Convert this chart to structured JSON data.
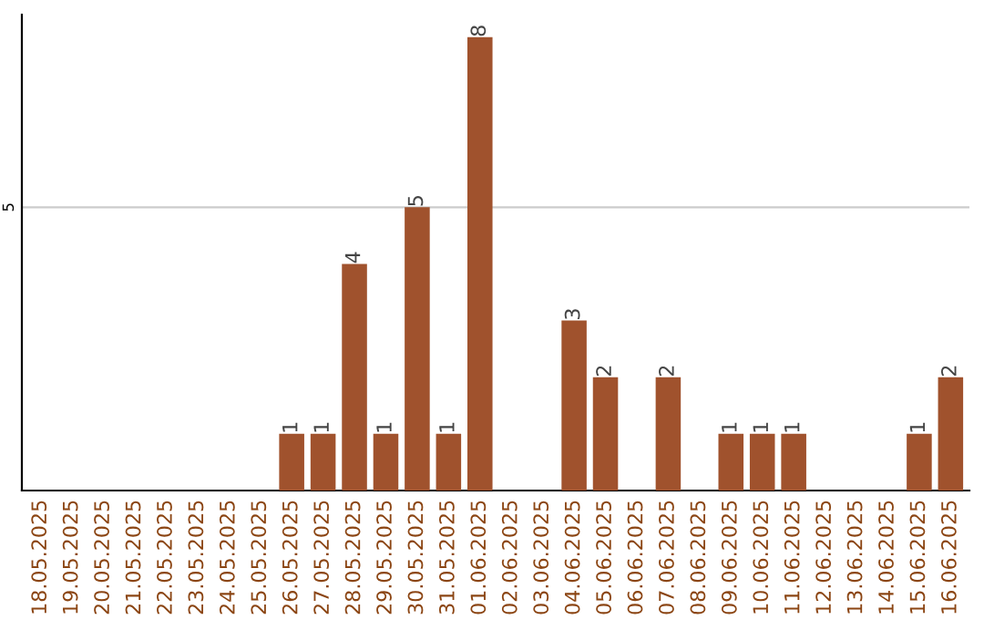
{
  "chart_data": {
    "type": "bar",
    "categories": [
      "18.05.2025",
      "19.05.2025",
      "20.05.2025",
      "21.05.2025",
      "22.05.2025",
      "23.05.2025",
      "24.05.2025",
      "25.05.2025",
      "26.05.2025",
      "27.05.2025",
      "28.05.2025",
      "29.05.2025",
      "30.05.2025",
      "31.05.2025",
      "01.06.2025",
      "02.06.2025",
      "03.06.2025",
      "04.06.2025",
      "05.06.2025",
      "06.06.2025",
      "07.06.2025",
      "08.06.2025",
      "09.06.2025",
      "10.06.2025",
      "11.06.2025",
      "12.06.2025",
      "13.06.2025",
      "14.06.2025",
      "15.06.2025",
      "16.06.2025"
    ],
    "values": [
      0,
      0,
      0,
      0,
      0,
      0,
      0,
      0,
      1,
      1,
      4,
      1,
      5,
      1,
      8,
      0,
      0,
      3,
      2,
      0,
      2,
      0,
      1,
      1,
      1,
      0,
      0,
      0,
      1,
      2
    ],
    "value_labels": [
      null,
      null,
      null,
      null,
      null,
      null,
      null,
      null,
      "1",
      "1",
      "4",
      "1",
      "5",
      "1",
      "8",
      null,
      null,
      "3",
      "2",
      null,
      "2",
      null,
      "1",
      "1",
      "1",
      null,
      null,
      null,
      "1",
      "2"
    ],
    "color": "#a0522d",
    "ylim": [
      0,
      8.4
    ],
    "yticks": [
      5
    ],
    "grid": "y"
  }
}
